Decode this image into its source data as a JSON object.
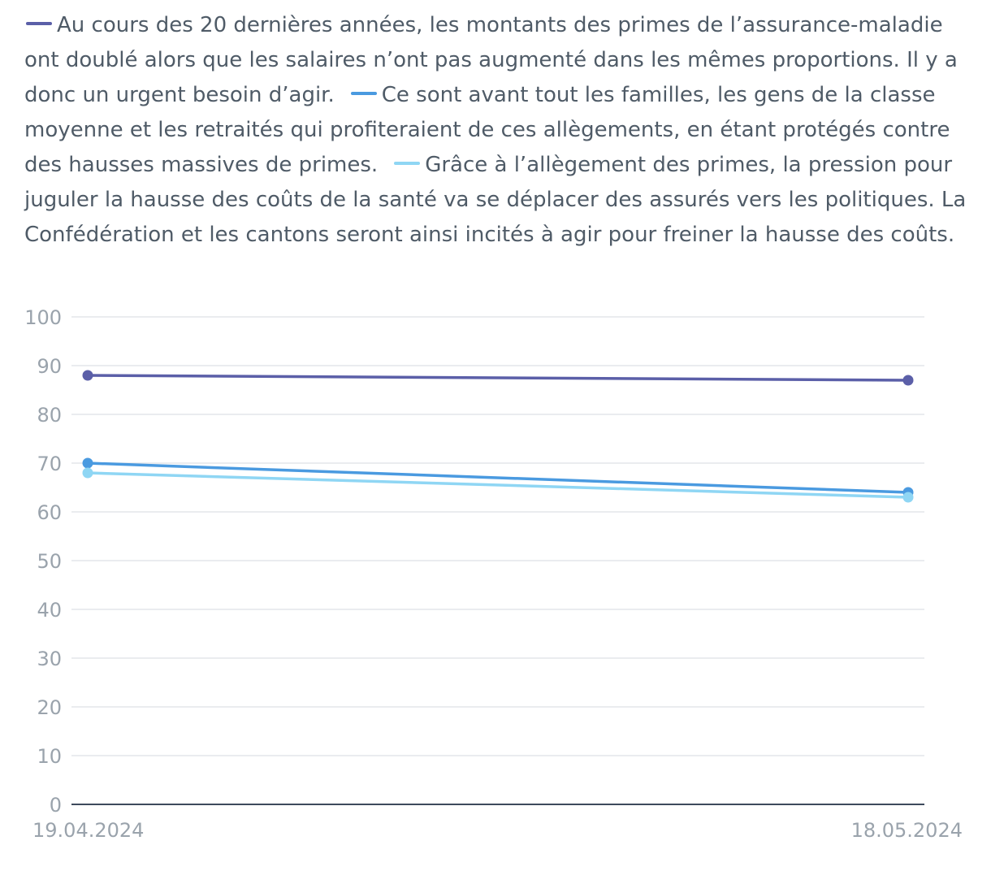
{
  "chart_data": {
    "type": "line",
    "x": [
      "19.04.2024",
      "18.05.2024"
    ],
    "ylim": [
      0,
      100
    ],
    "yticks": [
      0,
      10,
      20,
      30,
      40,
      50,
      60,
      70,
      80,
      90,
      100
    ],
    "grid": true,
    "legend_placement": "top",
    "series": [
      {
        "name": "Au cours des 20 dernières années, les montants des primes de l’assurance-maladie ont doublé alors que les salaires n’ont pas augmenté dans les mêmes proportions. Il y a donc un urgent besoin d’agir.",
        "color": "#5b5fa8",
        "values": [
          88,
          87
        ]
      },
      {
        "name": "Ce sont avant tout les familles, les gens de la classe moyenne et les retraités qui profiteraient de ces allègements, en étant protégés contre des hausses massives de primes.",
        "color": "#4a9ae0",
        "values": [
          70,
          64
        ]
      },
      {
        "name": "Grâce à l’allègement des primes, la pression pour juguler la hausse des coûts de la santé va se déplacer des assurés vers les politiques. La Confédération et les cantons seront ainsi incités à agir pour freiner la hausse des coûts.",
        "color": "#8fd6f4",
        "values": [
          68,
          63
        ]
      }
    ]
  }
}
